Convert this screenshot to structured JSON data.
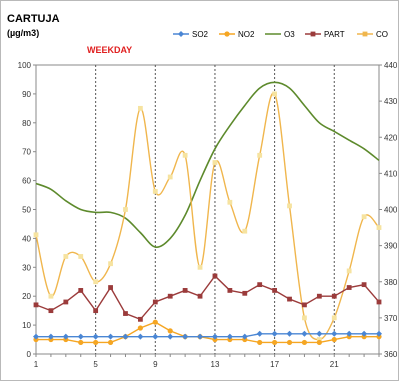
{
  "chart_data": {
    "type": "line",
    "title": "CARTUJA",
    "subtitle": "(µg/m3)",
    "annotation": "WEEKDAY",
    "x": [
      1,
      2,
      3,
      4,
      5,
      6,
      7,
      8,
      9,
      10,
      11,
      12,
      13,
      14,
      15,
      16,
      17,
      18,
      19,
      20,
      21,
      22,
      23,
      24
    ],
    "x_tick_labels": [
      "1",
      "5",
      "9",
      "13",
      "17",
      "21"
    ],
    "x_tick_values": [
      1,
      5,
      9,
      13,
      17,
      21
    ],
    "x_gridlines": [
      5,
      9,
      13,
      17,
      21
    ],
    "ylim_left": [
      0,
      100
    ],
    "y_left_ticks": [
      0,
      10,
      20,
      30,
      40,
      50,
      60,
      70,
      80,
      90,
      100
    ],
    "ylim_right": [
      360,
      440
    ],
    "y_right_ticks": [
      360,
      370,
      380,
      390,
      400,
      410,
      420,
      430,
      440
    ],
    "grid": "vertical dashed at x ticks",
    "legend_position": "top",
    "series": [
      {
        "name": "SO2",
        "axis": "left",
        "color": "#4a86d4",
        "marker": "diamond",
        "values": [
          6,
          6,
          6,
          6,
          6,
          6,
          6,
          6,
          6,
          6,
          6,
          6,
          6,
          6,
          6,
          7,
          7,
          7,
          7,
          7,
          7,
          7,
          7,
          7
        ]
      },
      {
        "name": "NO2",
        "axis": "left",
        "color": "#f5a623",
        "marker": "circle",
        "values": [
          5,
          5,
          5,
          4,
          4,
          4,
          6,
          9,
          11,
          8,
          6,
          6,
          5,
          5,
          5,
          4,
          4,
          4,
          4,
          4,
          5,
          6,
          6,
          6
        ]
      },
      {
        "name": "O3",
        "axis": "left",
        "color": "#5d8a2c",
        "marker": "none",
        "values": [
          59,
          57,
          53,
          50,
          49,
          49,
          47,
          42,
          37,
          40,
          48,
          60,
          71,
          79,
          86,
          92,
          94,
          92,
          86,
          80,
          77,
          74,
          71,
          67
        ]
      },
      {
        "name": "PART",
        "axis": "left",
        "color": "#9b3b3b",
        "marker": "square",
        "values": [
          17,
          15,
          18,
          22,
          15,
          23,
          14,
          12,
          18,
          20,
          22,
          20,
          27,
          22,
          21,
          24,
          22,
          19,
          17,
          20,
          20,
          23,
          24,
          18
        ]
      },
      {
        "name": "CO",
        "axis": "right",
        "color": "#f0b64d",
        "marker": "square",
        "values": [
          393,
          376,
          387,
          387,
          380,
          385,
          400,
          428,
          405,
          409,
          415,
          384,
          413,
          402,
          394,
          415,
          432,
          401,
          370,
          364,
          370,
          383,
          398,
          395
        ]
      }
    ]
  }
}
